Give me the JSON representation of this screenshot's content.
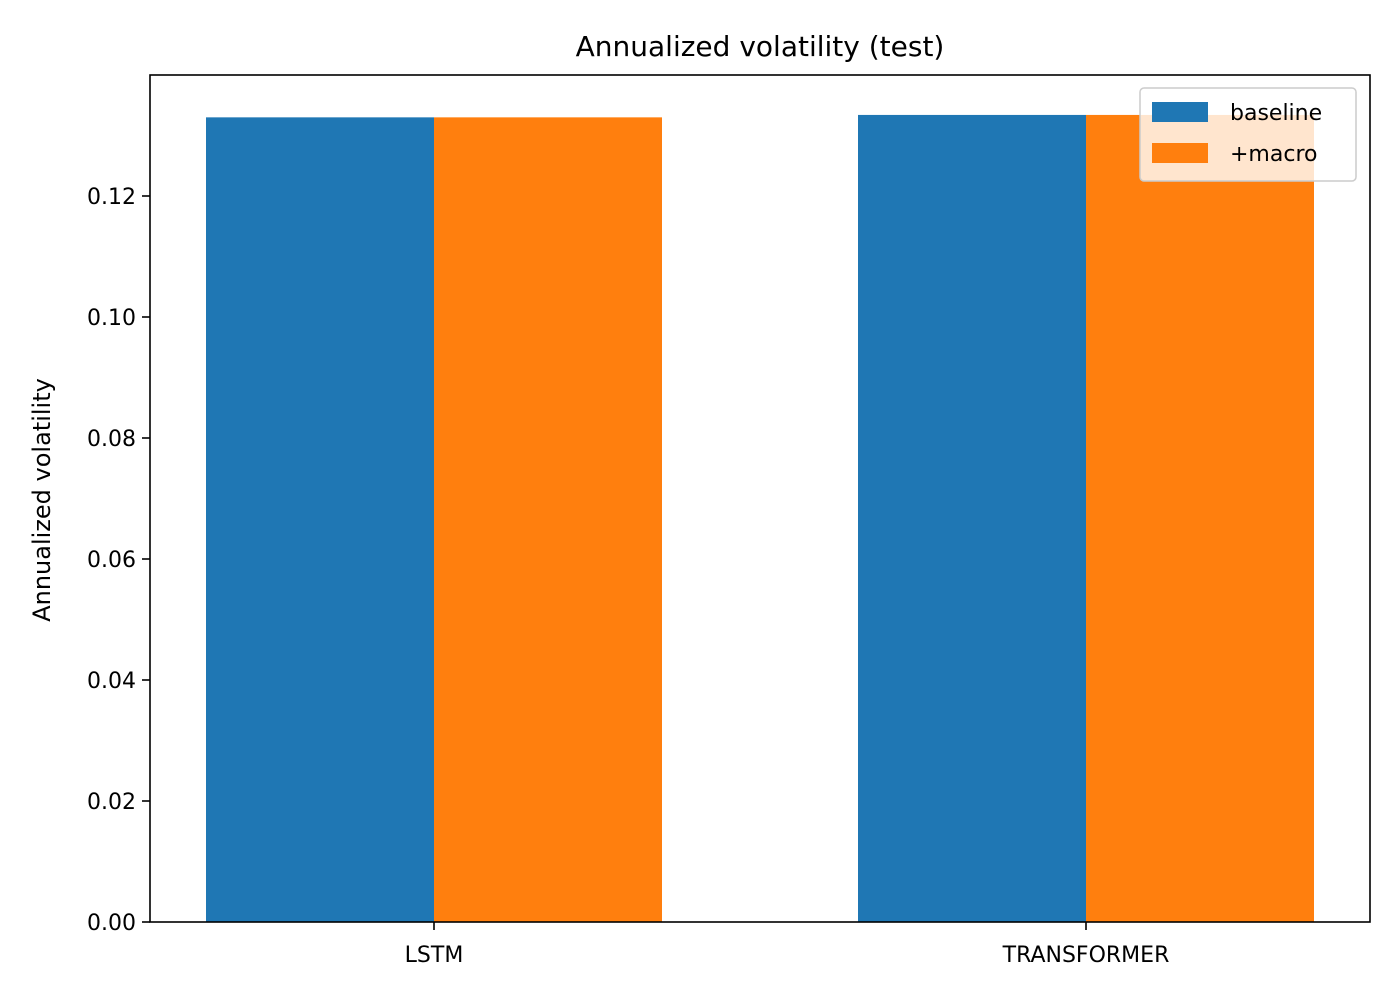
{
  "chart_data": {
    "type": "bar",
    "title": "Annualized volatility (test)",
    "xlabel": "",
    "ylabel": "Annualized volatility",
    "categories": [
      "LSTM",
      "TRANSFORMER"
    ],
    "series": [
      {
        "name": "baseline",
        "values": [
          0.133,
          0.1334
        ]
      },
      {
        "name": "+macro",
        "values": [
          0.133,
          0.1334
        ]
      }
    ],
    "ylim": [
      0,
      0.14
    ],
    "yticks": [
      0.0,
      0.02,
      0.04,
      0.06,
      0.08,
      0.1,
      0.12
    ],
    "ytick_labels": [
      "0.00",
      "0.02",
      "0.04",
      "0.06",
      "0.08",
      "0.10",
      "0.12"
    ],
    "grid": false,
    "legend_position": "top-right"
  },
  "colors": {
    "baseline": "#1f77b4",
    "macro": "#ff7f0e",
    "axis": "#000000"
  }
}
